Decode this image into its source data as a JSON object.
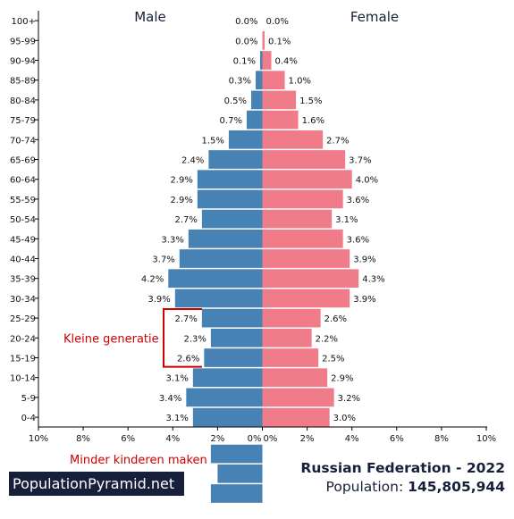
{
  "chart_data": {
    "type": "bar",
    "orientation": "horizontal-population-pyramid",
    "categories": [
      "100+",
      "95-99",
      "90-94",
      "85-89",
      "80-84",
      "75-79",
      "70-74",
      "65-69",
      "60-64",
      "55-59",
      "50-54",
      "45-49",
      "40-44",
      "35-39",
      "30-34",
      "25-29",
      "20-24",
      "15-19",
      "10-14",
      "5-9",
      "0-4"
    ],
    "series": [
      {
        "name": "Male",
        "values": [
          0.0,
          0.0,
          0.1,
          0.3,
          0.5,
          0.7,
          1.5,
          2.4,
          2.9,
          2.9,
          2.7,
          3.3,
          3.7,
          4.2,
          3.9,
          2.7,
          2.3,
          2.6,
          3.1,
          3.4,
          3.1
        ],
        "color": "#4682b4"
      },
      {
        "name": "Female",
        "values": [
          0.0,
          0.1,
          0.4,
          1.0,
          1.5,
          1.6,
          2.7,
          3.7,
          4.0,
          3.6,
          3.1,
          3.6,
          3.9,
          4.3,
          3.9,
          2.6,
          2.2,
          2.5,
          2.9,
          3.2,
          3.0
        ],
        "color": "#f07b89"
      }
    ],
    "male_labels": [
      "0.0%",
      "0.0%",
      "0.1%",
      "0.3%",
      "0.5%",
      "0.7%",
      "1.5%",
      "2.4%",
      "2.9%",
      "2.9%",
      "2.7%",
      "3.3%",
      "3.7%",
      "4.2%",
      "3.9%",
      "2.7%",
      "2.3%",
      "2.6%",
      "3.1%",
      "3.4%",
      "3.1%"
    ],
    "female_labels": [
      "0.0%",
      "0.1%",
      "0.4%",
      "1.0%",
      "1.5%",
      "1.6%",
      "2.7%",
      "3.7%",
      "4.0%",
      "3.6%",
      "3.1%",
      "3.6%",
      "3.9%",
      "4.3%",
      "3.9%",
      "2.6%",
      "2.2%",
      "2.5%",
      "2.9%",
      "3.2%",
      "3.0%"
    ],
    "xlim": [
      -10,
      10
    ],
    "x_tick_labels_left": [
      "10%",
      "8%",
      "6%",
      "4%",
      "2%",
      "0%"
    ],
    "x_tick_labels_right": [
      "0%",
      "2%",
      "4%",
      "6%",
      "8%",
      "10%"
    ],
    "x_tick_values_left": [
      10,
      8,
      6,
      4,
      2,
      0
    ],
    "x_tick_values_right": [
      0,
      2,
      4,
      6,
      8,
      10
    ],
    "annotations": [
      {
        "text": "Kleine generatie",
        "color": "#cc0000",
        "bracket_rows": [
          "25-29",
          "20-24",
          "15-19"
        ]
      },
      {
        "text": "Minder kinderen maken",
        "color": "#cc0000"
      }
    ],
    "inset_bars": {
      "color": "#4682b4",
      "values": [
        2.3,
        2.0,
        2.3
      ]
    },
    "colors": {
      "male": "#4682b4",
      "female": "#f07b89",
      "annotation": "#cc0000",
      "axis": "#000000"
    }
  },
  "headers": {
    "male": "Male",
    "female": "Female"
  },
  "footer": {
    "brand": "PopulationPyramid.net",
    "country_year": "Russian Federation - 2022",
    "population_label": "Population:",
    "population_value": "145,805,944"
  }
}
